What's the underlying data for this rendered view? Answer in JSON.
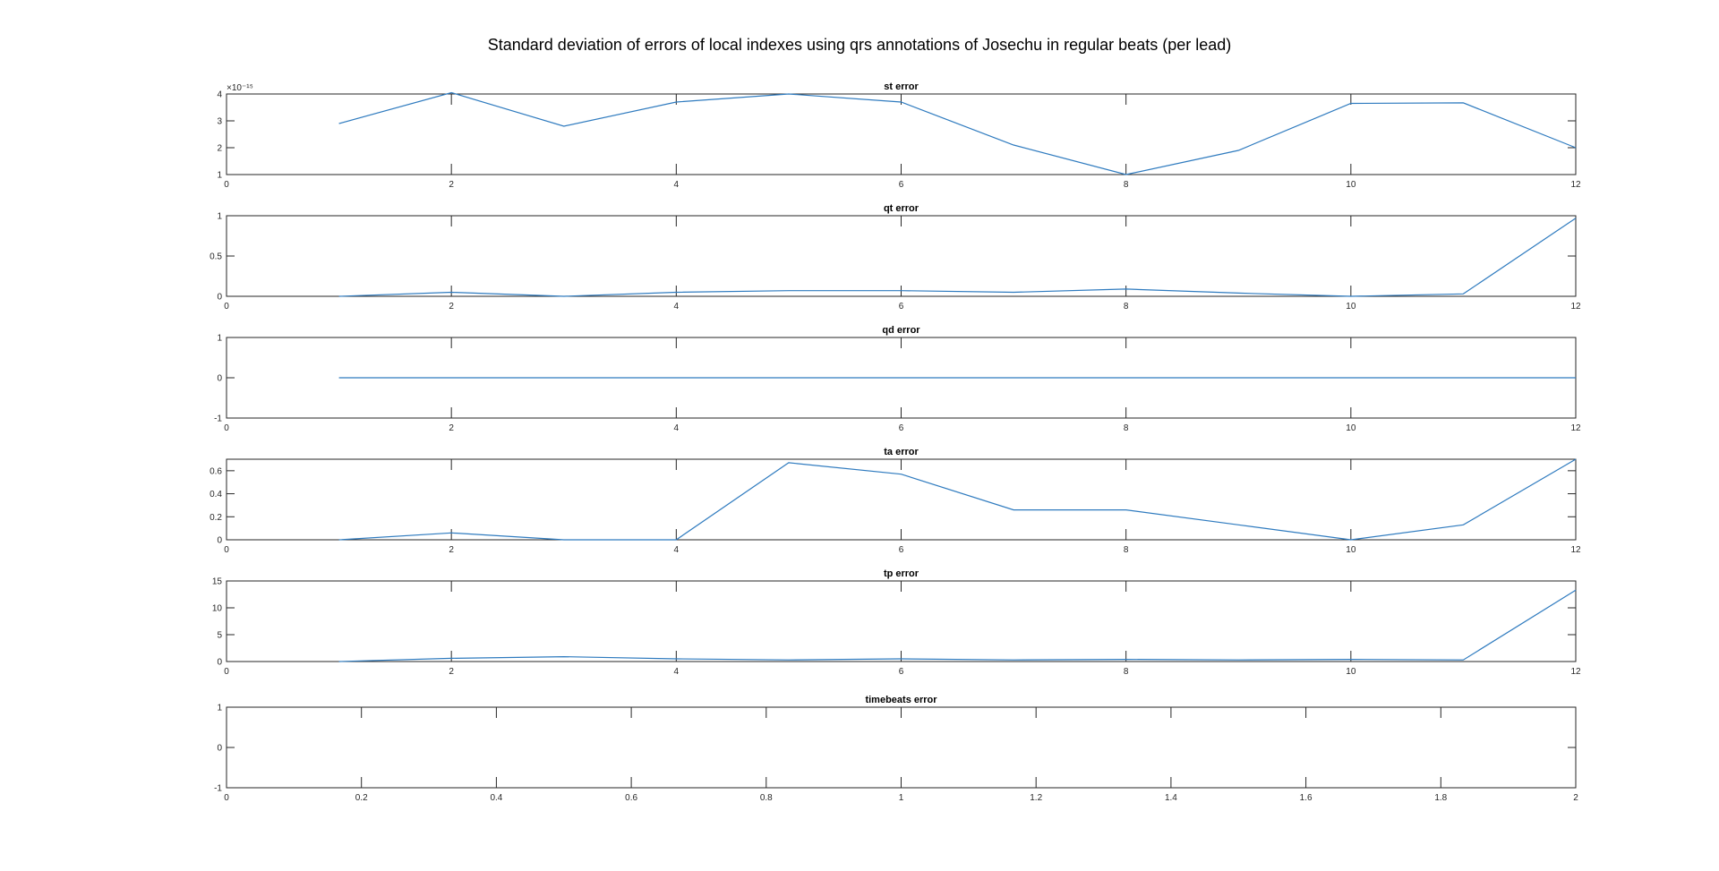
{
  "figure_title": "Standard deviation of errors of local indexes using qrs annotations of Josechu in regular beats (per lead)",
  "colors": {
    "series": "#2f7bbf",
    "axes": "#262626",
    "background": "#ffffff"
  },
  "chart_data": [
    {
      "type": "line",
      "title": "st error",
      "xlim": [
        0,
        12
      ],
      "ylim": [
        1,
        4
      ],
      "xticks": [
        0,
        2,
        4,
        6,
        8,
        10,
        12
      ],
      "yticks": [
        1,
        2,
        3,
        4
      ],
      "y_exponent_label": "×10⁻¹⁵",
      "x": [
        1,
        2,
        3,
        4,
        5,
        6,
        7,
        8,
        9,
        10,
        11,
        12
      ],
      "values": [
        2.9,
        4.05,
        2.8,
        3.7,
        4.0,
        3.7,
        2.1,
        1.0,
        1.9,
        3.65,
        3.67,
        2.0
      ]
    },
    {
      "type": "line",
      "title": "qt error",
      "xlim": [
        0,
        12
      ],
      "ylim": [
        0,
        1
      ],
      "xticks": [
        0,
        2,
        4,
        6,
        8,
        10,
        12
      ],
      "yticks": [
        0,
        0.5,
        1
      ],
      "x": [
        1,
        2,
        3,
        4,
        5,
        6,
        7,
        8,
        9,
        10,
        11,
        12
      ],
      "values": [
        0.0,
        0.05,
        0.0,
        0.05,
        0.07,
        0.07,
        0.05,
        0.09,
        0.04,
        0.0,
        0.03,
        0.97
      ]
    },
    {
      "type": "line",
      "title": "qd error",
      "xlim": [
        0,
        12
      ],
      "ylim": [
        -1,
        1
      ],
      "xticks": [
        0,
        2,
        4,
        6,
        8,
        10,
        12
      ],
      "yticks": [
        -1,
        0,
        1
      ],
      "x": [
        1,
        2,
        3,
        4,
        5,
        6,
        7,
        8,
        9,
        10,
        11,
        12
      ],
      "values": [
        0,
        0,
        0,
        0,
        0,
        0,
        0,
        0,
        0,
        0,
        0,
        0
      ]
    },
    {
      "type": "line",
      "title": "ta error",
      "xlim": [
        0,
        12
      ],
      "ylim": [
        0,
        0.7
      ],
      "xticks": [
        0,
        2,
        4,
        6,
        8,
        10,
        12
      ],
      "yticks": [
        0,
        0.2,
        0.4,
        0.6
      ],
      "x": [
        1,
        2,
        3,
        4,
        5,
        6,
        7,
        8,
        9,
        10,
        11,
        12
      ],
      "values": [
        0.0,
        0.06,
        0.0,
        0.0,
        0.67,
        0.57,
        0.26,
        0.26,
        0.13,
        0.0,
        0.13,
        0.7
      ]
    },
    {
      "type": "line",
      "title": "tp error",
      "xlim": [
        0,
        12
      ],
      "ylim": [
        0,
        15
      ],
      "xticks": [
        0,
        2,
        4,
        6,
        8,
        10,
        12
      ],
      "yticks": [
        0,
        5,
        10,
        15
      ],
      "x": [
        1,
        2,
        3,
        4,
        5,
        6,
        7,
        8,
        9,
        10,
        11,
        12
      ],
      "values": [
        0.0,
        0.6,
        0.9,
        0.5,
        0.3,
        0.5,
        0.3,
        0.4,
        0.3,
        0.4,
        0.3,
        13.3
      ]
    },
    {
      "type": "line",
      "title": "timebeats error",
      "xlim": [
        0,
        2
      ],
      "ylim": [
        -1,
        1
      ],
      "xticks": [
        0,
        0.2,
        0.4,
        0.6,
        0.8,
        1,
        1.2,
        1.4,
        1.6,
        1.8,
        2
      ],
      "yticks": [
        -1,
        0,
        1
      ],
      "x": [],
      "values": []
    }
  ]
}
